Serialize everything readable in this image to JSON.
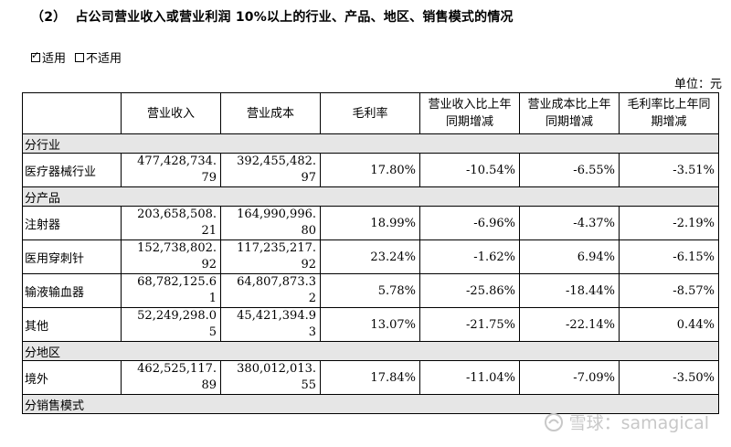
{
  "heading": {
    "number": "（2）",
    "title": "占公司营业收入或营业利润 10%以上的行业、产品、地区、销售模式的情况"
  },
  "applicability": {
    "applicable_label": "适用",
    "applicable_checked": true,
    "not_applicable_label": "不适用",
    "not_applicable_checked": false
  },
  "unit": {
    "label": "单位：",
    "value": "元"
  },
  "table": {
    "columns": [
      "",
      "营业收入",
      "营业成本",
      "毛利率",
      "营业收入比上年同期增减",
      "营业成本比上年同期增减",
      "毛利率比上年同期增减"
    ],
    "sections": [
      {
        "title": "分行业",
        "rows": [
          {
            "label": "医疗器械行业",
            "revenue_l1": "477,428,734.",
            "revenue_l2": "79",
            "cost_l1": "392,455,482.",
            "cost_l2": "97",
            "margin": "17.80%",
            "rev_change": "-10.54%",
            "cost_change": "-6.55%",
            "margin_change": "-3.51%"
          }
        ]
      },
      {
        "title": "分产品",
        "rows": [
          {
            "label": "注射器",
            "revenue_l1": "203,658,508.",
            "revenue_l2": "21",
            "cost_l1": "164,990,996.",
            "cost_l2": "80",
            "margin": "18.99%",
            "rev_change": "-6.96%",
            "cost_change": "-4.37%",
            "margin_change": "-2.19%"
          },
          {
            "label": "医用穿刺针",
            "revenue_l1": "152,738,802.",
            "revenue_l2": "92",
            "cost_l1": "117,235,217.",
            "cost_l2": "92",
            "margin": "23.24%",
            "rev_change": "-1.62%",
            "cost_change": "6.94%",
            "margin_change": "-6.15%"
          },
          {
            "label": "输液输血器",
            "revenue_l1": "68,782,125.6",
            "revenue_l2": "1",
            "cost_l1": "64,807,873.3",
            "cost_l2": "2",
            "margin": "5.78%",
            "rev_change": "-25.86%",
            "cost_change": "-18.44%",
            "margin_change": "-8.57%"
          },
          {
            "label": "其他",
            "revenue_l1": "52,249,298.0",
            "revenue_l2": "5",
            "cost_l1": "45,421,394.9",
            "cost_l2": "3",
            "margin": "13.07%",
            "rev_change": "-21.75%",
            "cost_change": "-22.14%",
            "margin_change": "0.44%"
          }
        ]
      },
      {
        "title": "分地区",
        "rows": [
          {
            "label": "境外",
            "revenue_l1": "462,525,117.",
            "revenue_l2": "89",
            "cost_l1": "380,012,013.",
            "cost_l2": "55",
            "margin": "17.84%",
            "rev_change": "-11.04%",
            "cost_change": "-7.09%",
            "margin_change": "-3.50%"
          }
        ]
      },
      {
        "title": "分销售模式",
        "rows": []
      }
    ]
  },
  "watermark": {
    "text": "雪球：samagical",
    "icon": "snowball-logo-icon"
  }
}
